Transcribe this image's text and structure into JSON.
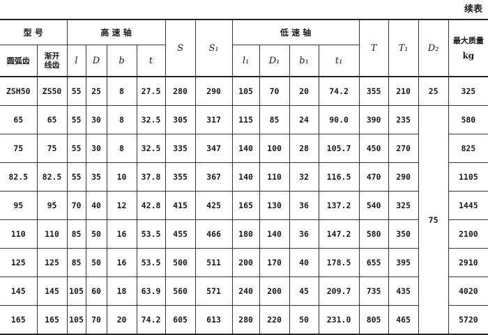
{
  "caption": "续表",
  "header": {
    "model": "型 号",
    "arc_gear": "圆弧齿",
    "involute_gear": "渐开线齿",
    "high_speed_shaft": "高 速 轴",
    "low_speed_shaft": "低 速 轴",
    "l": "l",
    "D": "D",
    "b": "b",
    "t": "t",
    "S": "S",
    "S1": "S₁",
    "l1": "l₁",
    "D1": "D₁",
    "b1": "b₁",
    "t1": "t₁",
    "T": "T",
    "T1": "T₁",
    "D2": "D₂",
    "max_mass": "最大质量",
    "mass_unit": "kg"
  },
  "rows": [
    [
      "ZSH50",
      "ZS50",
      "55",
      "25",
      "8",
      "27.5",
      "280",
      "290",
      "105",
      "70",
      "20",
      "74.2",
      "355",
      "210",
      "325"
    ],
    [
      "65",
      "65",
      "55",
      "30",
      "8",
      "32.5",
      "305",
      "317",
      "115",
      "85",
      "24",
      "90.0",
      "390",
      "235",
      "580"
    ],
    [
      "75",
      "75",
      "55",
      "30",
      "8",
      "32.5",
      "335",
      "347",
      "140",
      "100",
      "28",
      "105.7",
      "450",
      "270",
      "825"
    ],
    [
      "82.5",
      "82.5",
      "55",
      "35",
      "10",
      "37.8",
      "355",
      "367",
      "140",
      "110",
      "32",
      "116.5",
      "470",
      "290",
      "1105"
    ],
    [
      "95",
      "95",
      "70",
      "40",
      "12",
      "42.8",
      "415",
      "425",
      "165",
      "130",
      "36",
      "137.2",
      "540",
      "325",
      "1445"
    ],
    [
      "110",
      "110",
      "85",
      "50",
      "16",
      "53.5",
      "455",
      "466",
      "180",
      "140",
      "36",
      "147.2",
      "580",
      "350",
      "2100"
    ],
    [
      "125",
      "125",
      "85",
      "50",
      "16",
      "53.5",
      "500",
      "511",
      "200",
      "170",
      "40",
      "178.5",
      "655",
      "395",
      "2910"
    ],
    [
      "145",
      "145",
      "105",
      "60",
      "18",
      "63.9",
      "560",
      "571",
      "240",
      "200",
      "45",
      "209.7",
      "735",
      "435",
      "4020"
    ],
    [
      "165",
      "165",
      "105",
      "70",
      "20",
      "74.2",
      "605",
      "613",
      "280",
      "220",
      "50",
      "231.0",
      "805",
      "465",
      "5720"
    ]
  ],
  "D2_values": {
    "first": "25",
    "rest": "75"
  }
}
